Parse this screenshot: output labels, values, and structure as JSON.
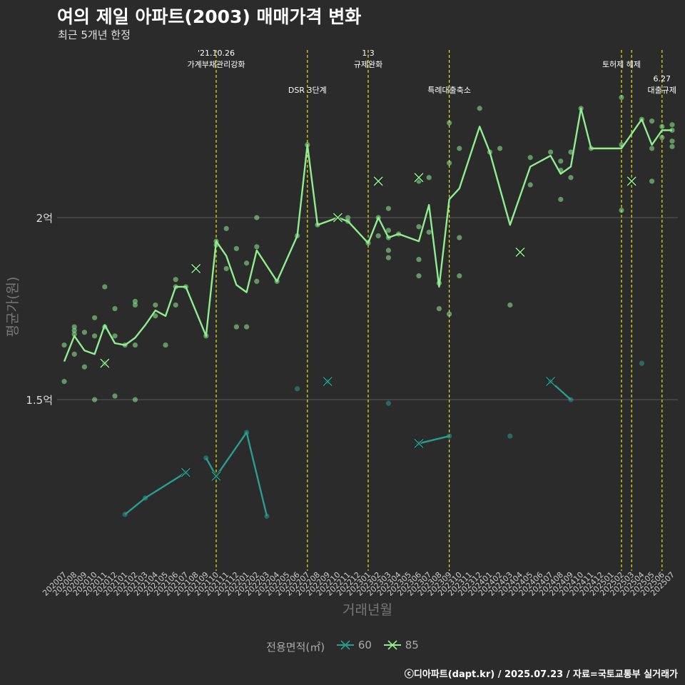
{
  "chart_data": {
    "type": "line",
    "title": "여의 제일 아파트(2003) 매매가격 변화",
    "subtitle": "최근 5개년 한정",
    "xlabel": "거래년월",
    "ylabel": "평균가(원)",
    "y_ticks": [
      {
        "value": 15000,
        "label": "1.5억"
      },
      {
        "value": 20000,
        "label": "2억"
      }
    ],
    "ylim": [
      10300,
      24800
    ],
    "months": [
      "202007",
      "202008",
      "202009",
      "202010",
      "202011",
      "202012",
      "202101",
      "202102",
      "202103",
      "202104",
      "202105",
      "202106",
      "202107",
      "202108",
      "202109",
      "202110",
      "202111",
      "202112",
      "202201",
      "202202",
      "202203",
      "202204",
      "202205",
      "202206",
      "202207",
      "202208",
      "202209",
      "202210",
      "202211",
      "202212",
      "202301",
      "202302",
      "202303",
      "202304",
      "202305",
      "202306",
      "202307",
      "202308",
      "202309",
      "202310",
      "202311",
      "202312",
      "202401",
      "202402",
      "202403",
      "202404",
      "202405",
      "202406",
      "202407",
      "202408",
      "202409",
      "202410",
      "202411",
      "202412",
      "202501",
      "202502",
      "202503",
      "202504",
      "202505",
      "202506",
      "202507"
    ],
    "legend_title": "전용면적(㎡)",
    "series": [
      {
        "name": "60",
        "color": "#2a9d8f",
        "line_segments": [
          [
            [
              "202101",
              11850
            ],
            [
              "202103",
              12300
            ],
            [
              "202107",
              13000
            ]
          ],
          [
            [
              "202109",
              13400
            ],
            [
              "202110",
              12900
            ],
            [
              "202201",
              14100
            ],
            [
              "202203",
              11800
            ]
          ],
          [
            [
              "202306",
              13800
            ],
            [
              "202309",
              14000
            ]
          ],
          [
            [
              "202407",
              15500
            ],
            [
              "202409",
              15000
            ]
          ]
        ],
        "points": [
          [
            "202101",
            11850
          ],
          [
            "202103",
            12300
          ],
          [
            "202107",
            13000
          ],
          [
            "202109",
            13400
          ],
          [
            "202110",
            12900
          ],
          [
            "202201",
            14100
          ],
          [
            "202203",
            11800
          ],
          [
            "202206",
            15300
          ],
          [
            "202209",
            15500
          ],
          [
            "202303",
            14900
          ],
          [
            "202306",
            13800
          ],
          [
            "202309",
            14000
          ],
          [
            "202403",
            14000
          ],
          [
            "202407",
            15500
          ],
          [
            "202409",
            15000
          ],
          [
            "202504",
            15999
          ]
        ],
        "cross_points": [
          [
            "202107",
            13000
          ],
          [
            "202110",
            12900
          ],
          [
            "202209",
            15500
          ],
          [
            "202306",
            13800
          ],
          [
            "202407",
            15500
          ]
        ]
      },
      {
        "name": "85",
        "color": "#90ee90",
        "line": [
          [
            "202007",
            16050
          ],
          [
            "202008",
            16750
          ],
          [
            "202009",
            16350
          ],
          [
            "202010",
            16250
          ],
          [
            "202011",
            17050
          ],
          [
            "202012",
            16550
          ],
          [
            "202101",
            16500
          ],
          [
            "202102",
            16700
          ],
          [
            "202103",
            17050
          ],
          [
            "202104",
            17450
          ],
          [
            "202105",
            17300
          ],
          [
            "202106",
            18100
          ],
          [
            "202107",
            18100
          ],
          [
            "202109",
            16750
          ],
          [
            "202110",
            19350
          ],
          [
            "202111",
            18950
          ],
          [
            "202112",
            18150
          ],
          [
            "202201",
            17950
          ],
          [
            "202202",
            19100
          ],
          [
            "202204",
            18250
          ],
          [
            "202206",
            19500
          ],
          [
            "202207",
            22000
          ],
          [
            "202208",
            19800
          ],
          [
            "202210",
            20000
          ],
          [
            "202211",
            19900
          ],
          [
            "202301",
            19300
          ],
          [
            "202302",
            20000
          ],
          [
            "202303",
            19450
          ],
          [
            "202304",
            19550
          ],
          [
            "202306",
            19350
          ],
          [
            "202307",
            20350
          ],
          [
            "202308",
            18100
          ],
          [
            "202309",
            20500
          ],
          [
            "202310",
            20800
          ],
          [
            "202312",
            22500
          ],
          [
            "202401",
            21800
          ],
          [
            "202403",
            19800
          ],
          [
            "202405",
            21400
          ],
          [
            "202407",
            21700
          ],
          [
            "202408",
            21200
          ],
          [
            "202409",
            21400
          ],
          [
            "202410",
            23000
          ],
          [
            "202411",
            21900
          ],
          [
            "202502",
            21900
          ],
          [
            "202504",
            22700
          ],
          [
            "202505",
            22000
          ],
          [
            "202506",
            22400
          ],
          [
            "202507",
            22400
          ]
        ],
        "points": [
          [
            "202007",
            16500
          ],
          [
            "202007",
            15500
          ],
          [
            "202008",
            16900
          ],
          [
            "202008",
            17000
          ],
          [
            "202008",
            16800
          ],
          [
            "202008",
            16250
          ],
          [
            "202009",
            16850
          ],
          [
            "202009",
            15900
          ],
          [
            "202010",
            17250
          ],
          [
            "202010",
            16750
          ],
          [
            "202010",
            15000
          ],
          [
            "202011",
            18100
          ],
          [
            "202011",
            16000
          ],
          [
            "202011",
            17000
          ],
          [
            "202012",
            17500
          ],
          [
            "202012",
            16750
          ],
          [
            "202012",
            15100
          ],
          [
            "202101",
            16500
          ],
          [
            "202102",
            17700
          ],
          [
            "202102",
            17600
          ],
          [
            "202102",
            16500
          ],
          [
            "202102",
            15000
          ],
          [
            "202104",
            17600
          ],
          [
            "202104",
            17300
          ],
          [
            "202105",
            16500
          ],
          [
            "202106",
            18300
          ],
          [
            "202106",
            18100
          ],
          [
            "202106",
            17600
          ],
          [
            "202107",
            18100
          ],
          [
            "202109",
            16750
          ],
          [
            "202110",
            19350
          ],
          [
            "202110",
            19250
          ],
          [
            "202111",
            19700
          ],
          [
            "202111",
            18600
          ],
          [
            "202112",
            19150
          ],
          [
            "202112",
            17000
          ],
          [
            "202201",
            18750
          ],
          [
            "202201",
            17000
          ],
          [
            "202202",
            19200
          ],
          [
            "202202",
            18250
          ],
          [
            "202202",
            20000
          ],
          [
            "202204",
            18250
          ],
          [
            "202206",
            19500
          ],
          [
            "202207",
            22000
          ],
          [
            "202208",
            19800
          ],
          [
            "202211",
            20000
          ],
          [
            "202211",
            19900
          ],
          [
            "202301",
            19300
          ],
          [
            "202302",
            19500
          ],
          [
            "202302",
            20000
          ],
          [
            "202303",
            20250
          ],
          [
            "202303",
            19650
          ],
          [
            "202303",
            19450
          ],
          [
            "202303",
            19100
          ],
          [
            "202303",
            18900
          ],
          [
            "202304",
            19550
          ],
          [
            "202306",
            19750
          ],
          [
            "202306",
            21000
          ],
          [
            "202306",
            18850
          ],
          [
            "202306",
            18400
          ],
          [
            "202307",
            21100
          ],
          [
            "202307",
            19600
          ],
          [
            "202308",
            18200
          ],
          [
            "202308",
            17500
          ],
          [
            "202309",
            22600
          ],
          [
            "202309",
            21500
          ],
          [
            "202309",
            17350
          ],
          [
            "202310",
            19450
          ],
          [
            "202310",
            21900
          ],
          [
            "202310",
            18400
          ],
          [
            "202312",
            23000
          ],
          [
            "202401",
            21800
          ],
          [
            "202403",
            17600
          ],
          [
            "202405",
            21650
          ],
          [
            "202405",
            20900
          ],
          [
            "202402",
            21900
          ],
          [
            "202407",
            21800
          ],
          [
            "202408",
            21550
          ],
          [
            "202408",
            21300
          ],
          [
            "202408",
            20500
          ],
          [
            "202409",
            21800
          ],
          [
            "202409",
            21100
          ],
          [
            "202410",
            23000
          ],
          [
            "202411",
            21900
          ],
          [
            "202502",
            23300
          ],
          [
            "202502",
            22000
          ],
          [
            "202502",
            20200
          ],
          [
            "202504",
            22700
          ],
          [
            "202505",
            22650
          ],
          [
            "202505",
            21000
          ],
          [
            "202505",
            21900
          ],
          [
            "202506",
            22500
          ],
          [
            "202506",
            22200
          ],
          [
            "202507",
            22550
          ],
          [
            "202507",
            22400
          ],
          [
            "202507",
            22100
          ],
          [
            "202507",
            21950
          ]
        ],
        "cross_points": [
          [
            "202011",
            16000
          ],
          [
            "202108",
            18600
          ],
          [
            "202210",
            20000
          ],
          [
            "202302",
            21000
          ],
          [
            "202306",
            21100
          ],
          [
            "202404",
            19050
          ],
          [
            "202503",
            21000
          ]
        ]
      }
    ],
    "annotations": [
      {
        "month": "202110",
        "lines": [
          "'21.10.26",
          "가계부채관리강화"
        ],
        "color": "#e5e510",
        "row": 0
      },
      {
        "month": "202207",
        "lines": [
          "DSR 3단계"
        ],
        "color": "#e5e510",
        "row": 1
      },
      {
        "month": "202301",
        "lines": [
          "1.3",
          "규제완화"
        ],
        "color": "#e5e510",
        "row": 0
      },
      {
        "month": "202309",
        "lines": [
          "특례대출축소"
        ],
        "color": "#e5e510",
        "row": 1
      },
      {
        "month": "202502",
        "lines": [
          "토허제 해제"
        ],
        "color": "#e5e510",
        "row": 0
      },
      {
        "month": "202503",
        "lines": [],
        "color": "#e5e510",
        "row": 0
      },
      {
        "month": "202506",
        "lines": [
          "6.27",
          "대출규제"
        ],
        "color": "#e5e510",
        "row": 1
      }
    ],
    "grid": "horizontal",
    "legend_position": "bottom"
  },
  "caption": "ⓒ디아파트(dapt.kr) / 2025.07.23 / 자료=국토교통부 실거래가",
  "colors": {
    "background": "#2b2b2b",
    "grid": "#5a5a5a",
    "event_line": "#e5e510"
  }
}
